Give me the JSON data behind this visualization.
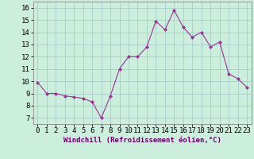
{
  "x": [
    0,
    1,
    2,
    3,
    4,
    5,
    6,
    7,
    8,
    9,
    10,
    11,
    12,
    13,
    14,
    15,
    16,
    17,
    18,
    19,
    20,
    21,
    22,
    23
  ],
  "y": [
    9.9,
    9.0,
    9.0,
    8.8,
    8.7,
    8.6,
    8.3,
    7.0,
    8.8,
    11.0,
    12.0,
    12.0,
    12.8,
    14.9,
    14.2,
    15.8,
    14.4,
    13.6,
    14.0,
    12.8,
    13.2,
    10.6,
    10.2,
    9.5
  ],
  "line_color": "#993399",
  "marker": "D",
  "marker_size": 2.0,
  "bg_color": "#cceedd",
  "grid_color": "#aacccc",
  "xlabel": "Windchill (Refroidissement éolien,°C)",
  "xlim": [
    -0.5,
    23.5
  ],
  "ylim": [
    6.5,
    16.5
  ],
  "yticks": [
    7,
    8,
    9,
    10,
    11,
    12,
    13,
    14,
    15,
    16
  ],
  "xticks": [
    0,
    1,
    2,
    3,
    4,
    5,
    6,
    7,
    8,
    9,
    10,
    11,
    12,
    13,
    14,
    15,
    16,
    17,
    18,
    19,
    20,
    21,
    22,
    23
  ],
  "xlabel_fontsize": 6.5,
  "tick_fontsize": 6.5,
  "spine_color": "#888888",
  "linewidth": 0.8
}
